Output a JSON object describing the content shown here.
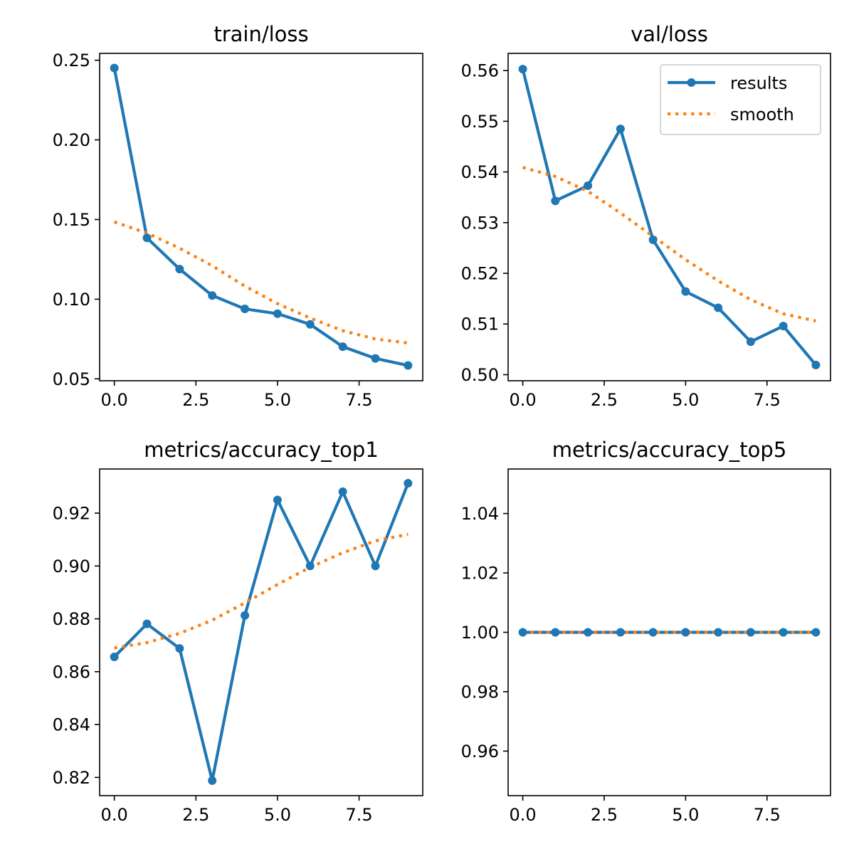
{
  "colors": {
    "results": "#1f77b4",
    "smooth": "#ff7f0e",
    "axes": "#000000",
    "background": "#ffffff"
  },
  "legend": {
    "entries": [
      "results",
      "smooth"
    ],
    "location": "upper right of val/loss panel"
  },
  "chart_data": [
    {
      "type": "line",
      "title": "train/loss",
      "xlabel": "",
      "ylabel": "",
      "x": [
        0,
        1,
        2,
        3,
        4,
        5,
        6,
        7,
        8,
        9
      ],
      "xlim": [
        -0.45,
        9.45
      ],
      "ylim": [
        0.0488,
        0.2543
      ],
      "xticks": [
        0.0,
        2.5,
        5.0,
        7.5
      ],
      "xtick_labels": [
        "0.0",
        "2.5",
        "5.0",
        "7.5"
      ],
      "yticks": [
        0.05,
        0.1,
        0.15,
        0.2,
        0.25
      ],
      "ytick_labels": [
        "0.05",
        "0.10",
        "0.15",
        "0.20",
        "0.25"
      ],
      "grid": false,
      "series": [
        {
          "name": "results",
          "style": "solid-with-markers",
          "values": [
            0.2451,
            0.1385,
            0.1189,
            0.1023,
            0.0939,
            0.0909,
            0.0842,
            0.0702,
            0.0628,
            0.0584
          ]
        },
        {
          "name": "smooth",
          "style": "dotted",
          "values": [
            0.1485,
            0.1415,
            0.132,
            0.121,
            0.1082,
            0.0972,
            0.0882,
            0.0802,
            0.075,
            0.0725
          ]
        }
      ]
    },
    {
      "type": "line",
      "title": "val/loss",
      "xlabel": "",
      "ylabel": "",
      "x": [
        0,
        1,
        2,
        3,
        4,
        5,
        6,
        7,
        8,
        9
      ],
      "xlim": [
        -0.45,
        9.45
      ],
      "ylim": [
        0.4988,
        0.5634
      ],
      "xticks": [
        0.0,
        2.5,
        5.0,
        7.5
      ],
      "xtick_labels": [
        "0.0",
        "2.5",
        "5.0",
        "7.5"
      ],
      "yticks": [
        0.5,
        0.51,
        0.52,
        0.53,
        0.54,
        0.55,
        0.56
      ],
      "ytick_labels": [
        "0.50",
        "0.51",
        "0.52",
        "0.53",
        "0.54",
        "0.55",
        "0.56"
      ],
      "grid": false,
      "legend": true,
      "series": [
        {
          "name": "results",
          "style": "solid-with-markers",
          "values": [
            0.5603,
            0.5343,
            0.5373,
            0.5485,
            0.5266,
            0.5164,
            0.5132,
            0.5065,
            0.5096,
            0.5019
          ]
        },
        {
          "name": "smooth",
          "style": "dotted",
          "values": [
            0.5409,
            0.5391,
            0.5362,
            0.5319,
            0.5273,
            0.5227,
            0.5185,
            0.5148,
            0.512,
            0.5106
          ]
        }
      ]
    },
    {
      "type": "line",
      "title": "metrics/accuracy_top1",
      "xlabel": "",
      "ylabel": "",
      "x": [
        0,
        1,
        2,
        3,
        4,
        5,
        6,
        7,
        8,
        9
      ],
      "xlim": [
        -0.45,
        9.45
      ],
      "ylim": [
        0.8131,
        0.9367
      ],
      "xticks": [
        0.0,
        2.5,
        5.0,
        7.5
      ],
      "xtick_labels": [
        "0.0",
        "2.5",
        "5.0",
        "7.5"
      ],
      "yticks": [
        0.82,
        0.84,
        0.86,
        0.88,
        0.9,
        0.92
      ],
      "ytick_labels": [
        "0.82",
        "0.84",
        "0.86",
        "0.88",
        "0.90",
        "0.92"
      ],
      "grid": false,
      "series": [
        {
          "name": "results",
          "style": "solid-with-markers",
          "values": [
            0.8656,
            0.8781,
            0.8688,
            0.8188,
            0.8813,
            0.925,
            0.9,
            0.9281,
            0.9,
            0.9313
          ]
        },
        {
          "name": "smooth",
          "style": "dotted",
          "values": [
            0.869,
            0.871,
            0.8745,
            0.8795,
            0.886,
            0.893,
            0.8995,
            0.905,
            0.9095,
            0.912
          ]
        }
      ]
    },
    {
      "type": "line",
      "title": "metrics/accuracy_top5",
      "xlabel": "",
      "ylabel": "",
      "x": [
        0,
        1,
        2,
        3,
        4,
        5,
        6,
        7,
        8,
        9
      ],
      "xlim": [
        -0.45,
        9.45
      ],
      "ylim": [
        0.945,
        1.055
      ],
      "xticks": [
        0.0,
        2.5,
        5.0,
        7.5
      ],
      "xtick_labels": [
        "0.0",
        "2.5",
        "5.0",
        "7.5"
      ],
      "yticks": [
        0.96,
        0.98,
        1.0,
        1.02,
        1.04
      ],
      "ytick_labels": [
        "0.96",
        "0.98",
        "1.00",
        "1.02",
        "1.04"
      ],
      "grid": false,
      "series": [
        {
          "name": "results",
          "style": "solid-with-markers",
          "values": [
            1.0,
            1.0,
            1.0,
            1.0,
            1.0,
            1.0,
            1.0,
            1.0,
            1.0,
            1.0
          ]
        },
        {
          "name": "smooth",
          "style": "dotted",
          "values": [
            1.0,
            1.0,
            1.0,
            1.0,
            1.0,
            1.0,
            1.0,
            1.0,
            1.0,
            1.0
          ]
        }
      ]
    }
  ]
}
